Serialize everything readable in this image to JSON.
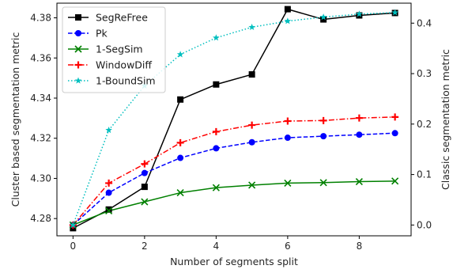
{
  "chart_data": {
    "type": "line",
    "title": "",
    "xlabel": "Number of segments split",
    "ylabel_left": "Cluster based segmentation metric",
    "ylabel_right": "Classic segmentation metric",
    "x": [
      0,
      1,
      2,
      3,
      4,
      5,
      6,
      7,
      8,
      9
    ],
    "xlim": [
      -0.45,
      9.45
    ],
    "xticks": [
      0,
      2,
      4,
      6,
      8
    ],
    "ylim_left": [
      4.2714,
      4.3873
    ],
    "yticks_left": [
      4.28,
      4.3,
      4.32,
      4.34,
      4.36,
      4.38
    ],
    "ylim_right": [
      -0.0214,
      0.4396
    ],
    "yticks_right": [
      0.0,
      0.1,
      0.2,
      0.3,
      0.4
    ],
    "grid": false,
    "legend_position": "upper-left",
    "series": [
      {
        "name": "SegReFree",
        "axis": "left",
        "color": "#000000",
        "line_style": "solid",
        "marker": "square",
        "values": [
          4.2752,
          4.2845,
          4.2958,
          4.3393,
          4.3468,
          4.3518,
          4.3843,
          4.3792,
          4.3812,
          4.3824
        ]
      },
      {
        "name": "Pk",
        "axis": "right",
        "color": "#0000ff",
        "line_style": "dashed",
        "marker": "circle",
        "values": [
          0.0,
          0.064,
          0.103,
          0.133,
          0.152,
          0.164,
          0.173,
          0.176,
          0.179,
          0.182
        ]
      },
      {
        "name": "1-SegSim",
        "axis": "right",
        "color": "#008000",
        "line_style": "solid",
        "marker": "x",
        "values": [
          0.0,
          0.028,
          0.046,
          0.064,
          0.074,
          0.079,
          0.083,
          0.084,
          0.086,
          0.087
        ]
      },
      {
        "name": "WindowDiff",
        "axis": "right",
        "color": "#ff0000",
        "line_style": "dashdot",
        "marker": "plus",
        "values": [
          0.0,
          0.083,
          0.121,
          0.163,
          0.185,
          0.198,
          0.206,
          0.207,
          0.212,
          0.214
        ]
      },
      {
        "name": "1-BoundSim",
        "axis": "right",
        "color": "#00bfbf",
        "line_style": "dotted",
        "marker": "star",
        "values": [
          0.0,
          0.188,
          0.276,
          0.338,
          0.371,
          0.392,
          0.404,
          0.412,
          0.418,
          0.421
        ]
      }
    ]
  }
}
